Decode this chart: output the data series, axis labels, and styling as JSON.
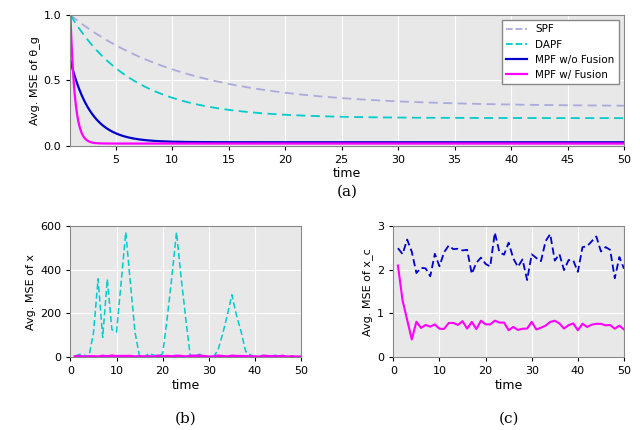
{
  "title_a": "(a)",
  "title_b": "(b)",
  "title_c": "(c)",
  "ylabel_a": "Avg. MSE of θ_g",
  "ylabel_b": "Avg. MSE of x",
  "ylabel_c": "Avg. MSE of x_c",
  "xlabel": "time",
  "spf_color": "#aaaadd",
  "dapf_color": "#00cccc",
  "mpf_nofusion_color": "#0000cc",
  "mpf_fusion_color": "#ff00ff",
  "axes_bg": "#f0f0f0",
  "fig_bg": "#ffffff",
  "legend_labels": [
    "SPF",
    "DAPF",
    "MPF w/o Fusion",
    "MPF w/ Fusion"
  ]
}
